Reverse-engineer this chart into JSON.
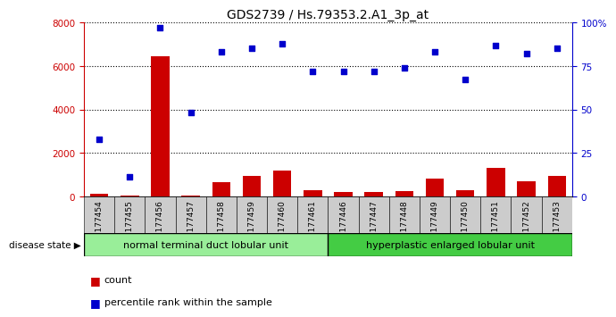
{
  "title": "GDS2739 / Hs.79353.2.A1_3p_at",
  "samples": [
    "GSM177454",
    "GSM177455",
    "GSM177456",
    "GSM177457",
    "GSM177458",
    "GSM177459",
    "GSM177460",
    "GSM177461",
    "GSM177446",
    "GSM177447",
    "GSM177448",
    "GSM177449",
    "GSM177450",
    "GSM177451",
    "GSM177452",
    "GSM177453"
  ],
  "counts": [
    100,
    50,
    6450,
    30,
    650,
    950,
    1200,
    300,
    200,
    200,
    250,
    800,
    280,
    1300,
    700,
    950
  ],
  "percentiles": [
    33,
    11,
    97,
    48,
    83,
    85,
    88,
    72,
    72,
    72,
    74,
    83,
    67,
    87,
    82,
    85
  ],
  "group1_label": "normal terminal duct lobular unit",
  "group2_label": "hyperplastic enlarged lobular unit",
  "group1_count": 8,
  "group2_count": 8,
  "disease_state_label": "disease state",
  "count_label": "count",
  "percentile_label": "percentile rank within the sample",
  "ylim_left": [
    0,
    8000
  ],
  "ylim_right": [
    0,
    100
  ],
  "yticks_left": [
    0,
    2000,
    4000,
    6000,
    8000
  ],
  "yticks_right": [
    0,
    25,
    50,
    75,
    100
  ],
  "bar_color": "#cc0000",
  "dot_color": "#0000cc",
  "group1_color": "#99ee99",
  "group2_color": "#44cc44",
  "tick_bg_color": "#cccccc",
  "plot_bg": "#ffffff",
  "title_color": "#000000",
  "left_axis_color": "#cc0000",
  "right_axis_color": "#0000cc"
}
